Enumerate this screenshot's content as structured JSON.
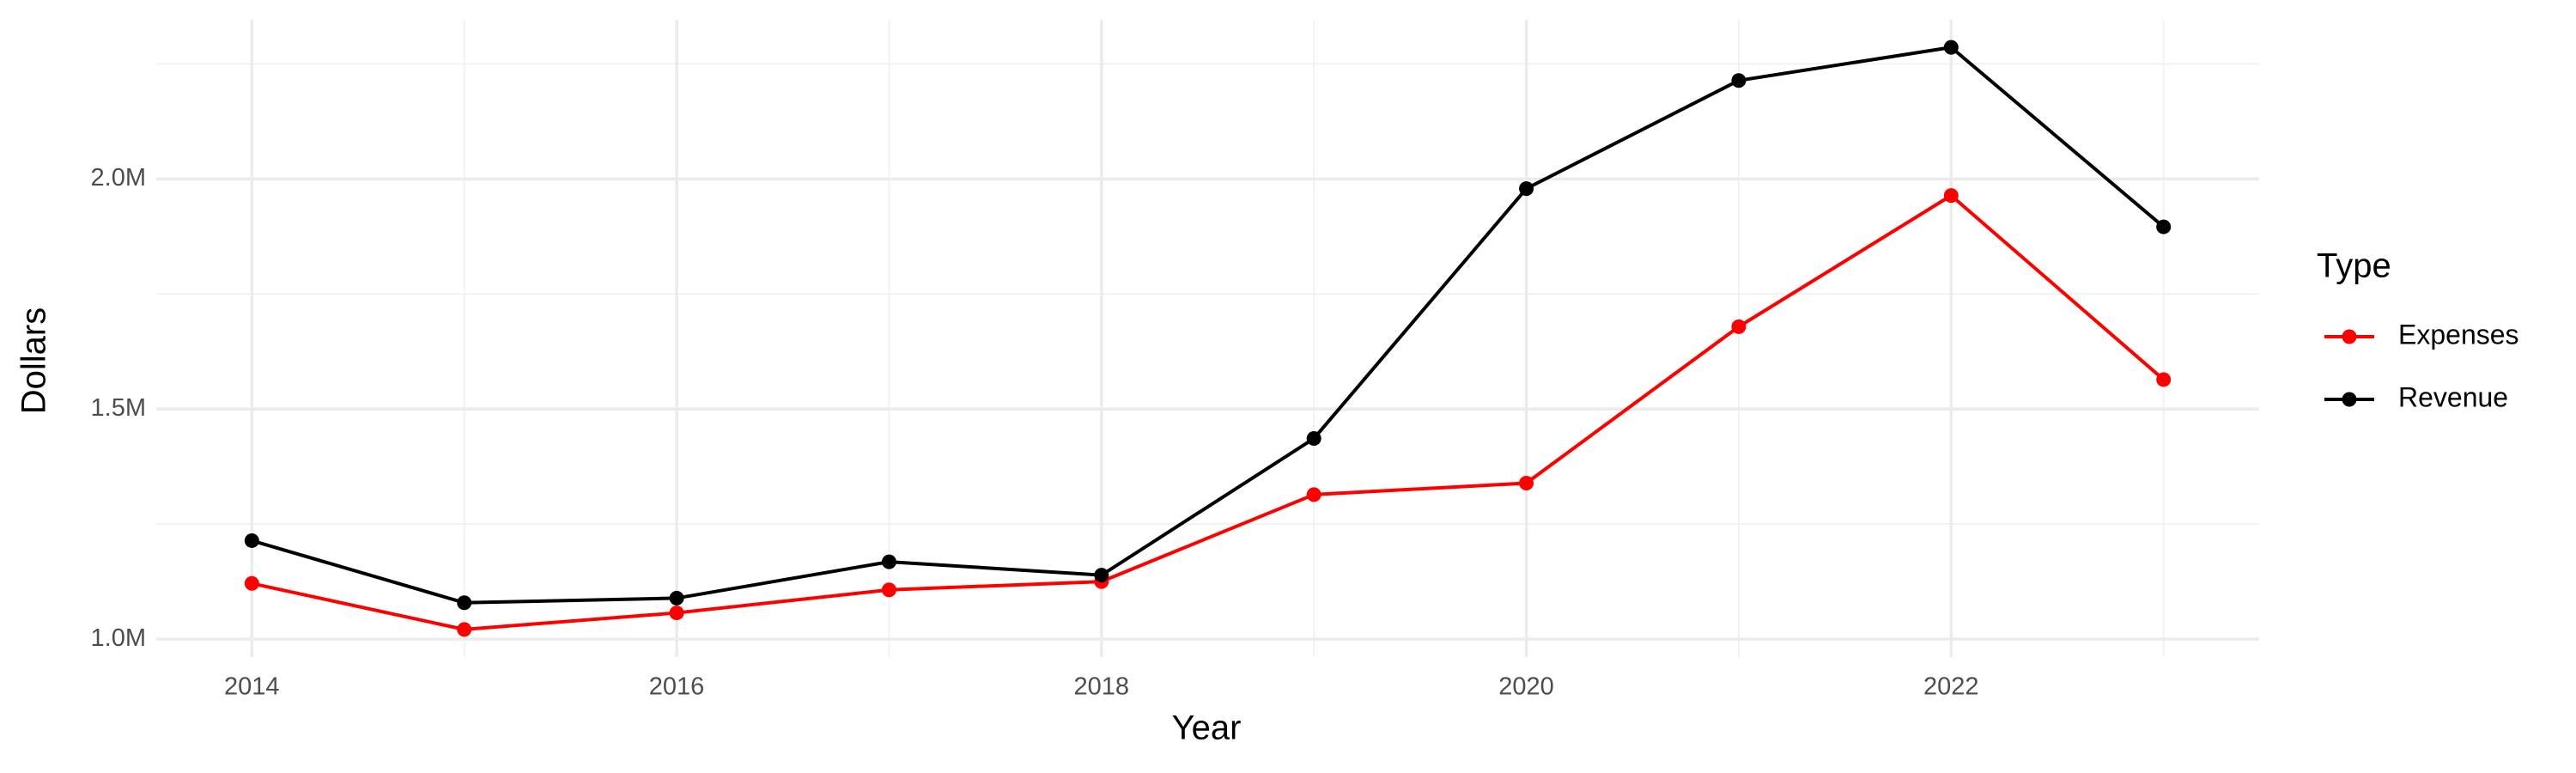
{
  "chart_data": {
    "type": "line",
    "x_label": "Year",
    "y_label": "Dollars",
    "legend_title": "Type",
    "x": [
      2014,
      2015,
      2016,
      2017,
      2018,
      2019,
      2020,
      2021,
      2022,
      2023
    ],
    "series": [
      {
        "name": "Expenses",
        "color": "#ff0000",
        "values": [
          1121000,
          1021000,
          1057000,
          1107000,
          1125000,
          1314000,
          1339000,
          1679000,
          1964000,
          1564000
        ]
      },
      {
        "name": "Revenue",
        "color": "#000000",
        "values": [
          1214000,
          1079000,
          1089000,
          1168000,
          1139000,
          1436000,
          1979000,
          2214000,
          2286000,
          1896000
        ]
      }
    ],
    "xlim": [
      2013.55,
      2023.45
    ],
    "xticks": [
      2014,
      2016,
      2018,
      2020,
      2022
    ],
    "ylim": [
      961000,
      2346000
    ],
    "yticks": [
      {
        "value": 1000000,
        "label": "1.0M"
      },
      {
        "value": 1500000,
        "label": "1.5M"
      },
      {
        "value": 2000000,
        "label": "2.0M"
      }
    ],
    "grid": true,
    "legend_position": "right"
  }
}
